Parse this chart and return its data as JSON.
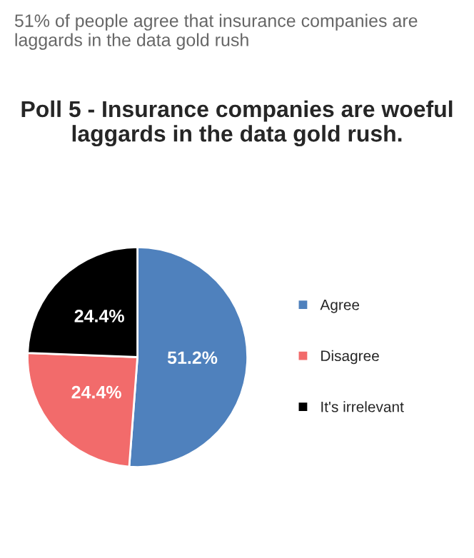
{
  "chart_data": {
    "type": "pie",
    "title": "Poll 5 - Insurance companies are woeful laggards in the data gold rush.",
    "annotations": [
      "51% of people agree that insurance companies are laggards in the data gold rush"
    ],
    "categories": [
      "Agree",
      "Disagree",
      "It's irrelevant"
    ],
    "values": [
      51.2,
      24.4,
      24.4
    ],
    "colors": [
      "#4f81bd",
      "#f26b6b",
      "#000000"
    ],
    "value_labels": [
      "51.2%",
      "24.4%",
      "24.4%"
    ],
    "legend": "right"
  }
}
